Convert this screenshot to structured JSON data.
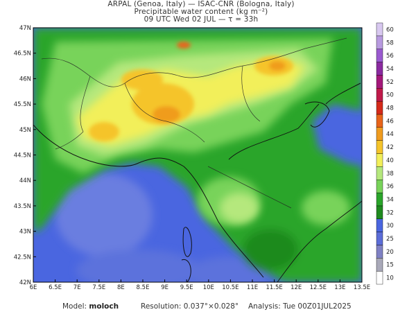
{
  "header": {
    "line1": "ARPAL (Genoa, Italy)  —  ISAC-CNR (Bologna, Italy)",
    "line2": "Precipitable water content (kg m⁻²)",
    "line3": "09 UTC Wed 02 JUL  —  τ = 33h"
  },
  "map": {
    "lon_labels": [
      "6E",
      "6.5E",
      "7E",
      "7.5E",
      "8E",
      "8.5E",
      "9E",
      "9.5E",
      "10E",
      "10.5E",
      "11E",
      "11.5E",
      "12E",
      "12.5E",
      "13E",
      "13.5E"
    ],
    "lat_labels": [
      "47N",
      "46.5N",
      "46N",
      "45.5N",
      "45N",
      "44.5N",
      "44N",
      "43.5N",
      "43N",
      "42.5N",
      "42N"
    ],
    "lon_range": [
      6,
      13.5
    ],
    "lat_range": [
      42,
      47
    ]
  },
  "colorbar": {
    "levels": [
      10,
      15,
      20,
      25,
      30,
      32,
      34,
      36,
      38,
      40,
      42,
      44,
      46,
      48,
      50,
      52,
      54,
      56,
      58,
      60
    ],
    "colors": [
      "#ffffff",
      "#a9a9b9",
      "#7f81c4",
      "#5c6dd8",
      "#4a66e0",
      "#1f8a1f",
      "#2aa52a",
      "#78d35a",
      "#b5e87d",
      "#f2ef5a",
      "#f5c42b",
      "#f09c1f",
      "#e8641a",
      "#d52a1a",
      "#c01a4a",
      "#a4187a",
      "#8a2aa0",
      "#9a5ad0",
      "#b89ae0",
      "#d8c8f0"
    ]
  },
  "footer": {
    "model_label": "Model:",
    "model_value": "moloch",
    "resolution": "Resolution: 0.037°×0.028°",
    "analysis": "Analysis: Tue 00Z01JUL2025"
  }
}
